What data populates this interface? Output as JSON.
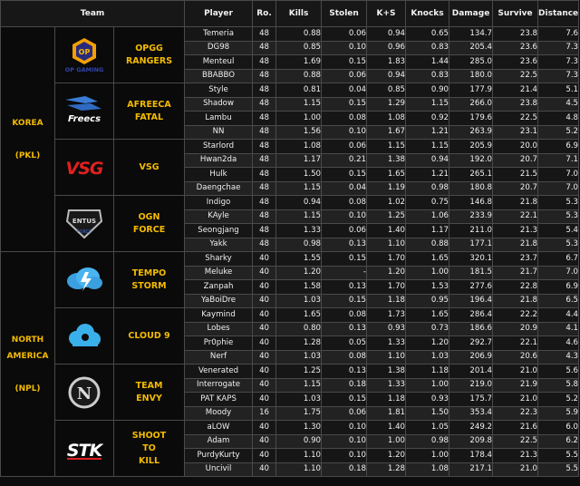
{
  "headers": {
    "team": "Team",
    "player": "Player",
    "ro": "Ro.",
    "kills": "Kills",
    "stolen": "Stolen",
    "ks": "K+S",
    "knocks": "Knocks",
    "damage": "Damage",
    "survive": "Survive",
    "distance": "Distance"
  },
  "colors": {
    "accent": "#f4bb00",
    "background": "#0d0d0d",
    "border": "#4a4a4a"
  },
  "regions": [
    {
      "label": "KOREA\n\n(PKL)",
      "teams": [
        {
          "name": "OPGG\nRANGERS",
          "logo": "opgg-logo",
          "logo_text": "OP GAMING",
          "players": [
            [
              "Temeria",
              "48",
              "0.88",
              "0.06",
              "0.94",
              "0.65",
              "134.7",
              "23.8",
              "7.6"
            ],
            [
              "DG98",
              "48",
              "0.85",
              "0.10",
              "0.96",
              "0.83",
              "205.4",
              "23.6",
              "7.3"
            ],
            [
              "Menteul",
              "48",
              "1.69",
              "0.15",
              "1.83",
              "1.44",
              "285.0",
              "23.6",
              "7.3"
            ],
            [
              "BBABBO",
              "48",
              "0.88",
              "0.06",
              "0.94",
              "0.83",
              "180.0",
              "22.5",
              "7.3"
            ]
          ]
        },
        {
          "name": "AFREECA\nFATAL",
          "logo": "afreeca-freecs-logo",
          "logo_text": "Freecs",
          "players": [
            [
              "Style",
              "48",
              "0.81",
              "0.04",
              "0.85",
              "0.90",
              "177.9",
              "21.4",
              "5.1"
            ],
            [
              "Shadow",
              "48",
              "1.15",
              "0.15",
              "1.29",
              "1.15",
              "266.0",
              "23.8",
              "4.5"
            ],
            [
              "Lambu",
              "48",
              "1.00",
              "0.08",
              "1.08",
              "0.92",
              "179.6",
              "22.5",
              "4.8"
            ],
            [
              "NN",
              "48",
              "1.56",
              "0.10",
              "1.67",
              "1.21",
              "263.9",
              "23.1",
              "5.2"
            ]
          ]
        },
        {
          "name": "VSG",
          "logo": "vsg-logo",
          "logo_text": "VSG",
          "players": [
            [
              "Starlord",
              "48",
              "1.08",
              "0.06",
              "1.15",
              "1.15",
              "205.9",
              "20.0",
              "6.9"
            ],
            [
              "Hwan2da",
              "48",
              "1.17",
              "0.21",
              "1.38",
              "0.94",
              "192.0",
              "20.7",
              "7.1"
            ],
            [
              "Hulk",
              "48",
              "1.50",
              "0.15",
              "1.65",
              "1.21",
              "265.1",
              "21.5",
              "7.0"
            ],
            [
              "Daengchae",
              "48",
              "1.15",
              "0.04",
              "1.19",
              "0.98",
              "180.8",
              "20.7",
              "7.0"
            ]
          ]
        },
        {
          "name": "OGN\nFORCE",
          "logo": "ogn-force-logo",
          "logo_text": "ENTUS",
          "players": [
            [
              "Indigo",
              "48",
              "0.94",
              "0.08",
              "1.02",
              "0.75",
              "146.8",
              "21.8",
              "5.3"
            ],
            [
              "KAyle",
              "48",
              "1.15",
              "0.10",
              "1.25",
              "1.06",
              "233.9",
              "22.1",
              "5.3"
            ],
            [
              "Seongjang",
              "48",
              "1.33",
              "0.06",
              "1.40",
              "1.17",
              "211.0",
              "21.3",
              "5.4"
            ],
            [
              "Yakk",
              "48",
              "0.98",
              "0.13",
              "1.10",
              "0.88",
              "177.1",
              "21.8",
              "5.3"
            ]
          ]
        }
      ]
    },
    {
      "label": "NORTH\nAMERICA\n\n(NPL)",
      "teams": [
        {
          "name": "TEMPO\nSTORM",
          "logo": "tempo-storm-logo",
          "logo_text": "",
          "players": [
            [
              "Sharky",
              "40",
              "1.55",
              "0.15",
              "1.70",
              "1.65",
              "320.1",
              "23.7",
              "6.7"
            ],
            [
              "Meluke",
              "40",
              "1.20",
              "-",
              "1.20",
              "1.00",
              "181.5",
              "21.7",
              "7.0"
            ],
            [
              "Zanpah",
              "40",
              "1.58",
              "0.13",
              "1.70",
              "1.53",
              "277.6",
              "22.8",
              "6.9"
            ],
            [
              "YaBoiDre",
              "40",
              "1.03",
              "0.15",
              "1.18",
              "0.95",
              "196.4",
              "21.8",
              "6.5"
            ]
          ]
        },
        {
          "name": "CLOUD 9",
          "logo": "cloud9-logo",
          "logo_text": "",
          "players": [
            [
              "Kaymind",
              "40",
              "1.65",
              "0.08",
              "1.73",
              "1.65",
              "286.4",
              "22.2",
              "4.4"
            ],
            [
              "Lobes",
              "40",
              "0.80",
              "0.13",
              "0.93",
              "0.73",
              "186.6",
              "20.9",
              "4.1"
            ],
            [
              "Pr0phie",
              "40",
              "1.28",
              "0.05",
              "1.33",
              "1.20",
              "292.7",
              "22.1",
              "4.6"
            ],
            [
              "Nerf",
              "40",
              "1.03",
              "0.08",
              "1.10",
              "1.03",
              "206.9",
              "20.6",
              "4.3"
            ]
          ]
        },
        {
          "name": "TEAM\nENVY",
          "logo": "team-envy-logo",
          "logo_text": "N",
          "players": [
            [
              "Venerated",
              "40",
              "1.25",
              "0.13",
              "1.38",
              "1.18",
              "201.4",
              "21.0",
              "5.6"
            ],
            [
              "Interrogate",
              "40",
              "1.15",
              "0.18",
              "1.33",
              "1.00",
              "219.0",
              "21.9",
              "5.8"
            ],
            [
              "PAT KAPS",
              "40",
              "1.03",
              "0.15",
              "1.18",
              "0.93",
              "175.7",
              "21.0",
              "5.2"
            ],
            [
              "Moody",
              "16",
              "1.75",
              "0.06",
              "1.81",
              "1.50",
              "353.4",
              "22.3",
              "5.9"
            ]
          ]
        },
        {
          "name": "SHOOT\nTO\nKILL",
          "logo": "shoot-to-kill-logo",
          "logo_text": "STK",
          "players": [
            [
              "aLOW",
              "40",
              "1.30",
              "0.10",
              "1.40",
              "1.05",
              "249.2",
              "21.6",
              "6.0"
            ],
            [
              "Adam",
              "40",
              "0.90",
              "0.10",
              "1.00",
              "0.98",
              "209.8",
              "22.5",
              "6.2"
            ],
            [
              "PurdyKurty",
              "40",
              "1.10",
              "0.10",
              "1.20",
              "1.00",
              "178.4",
              "21.3",
              "5.5"
            ],
            [
              "Uncivil",
              "40",
              "1.10",
              "0.18",
              "1.28",
              "1.08",
              "217.1",
              "21.0",
              "5.5"
            ]
          ]
        }
      ]
    }
  ]
}
